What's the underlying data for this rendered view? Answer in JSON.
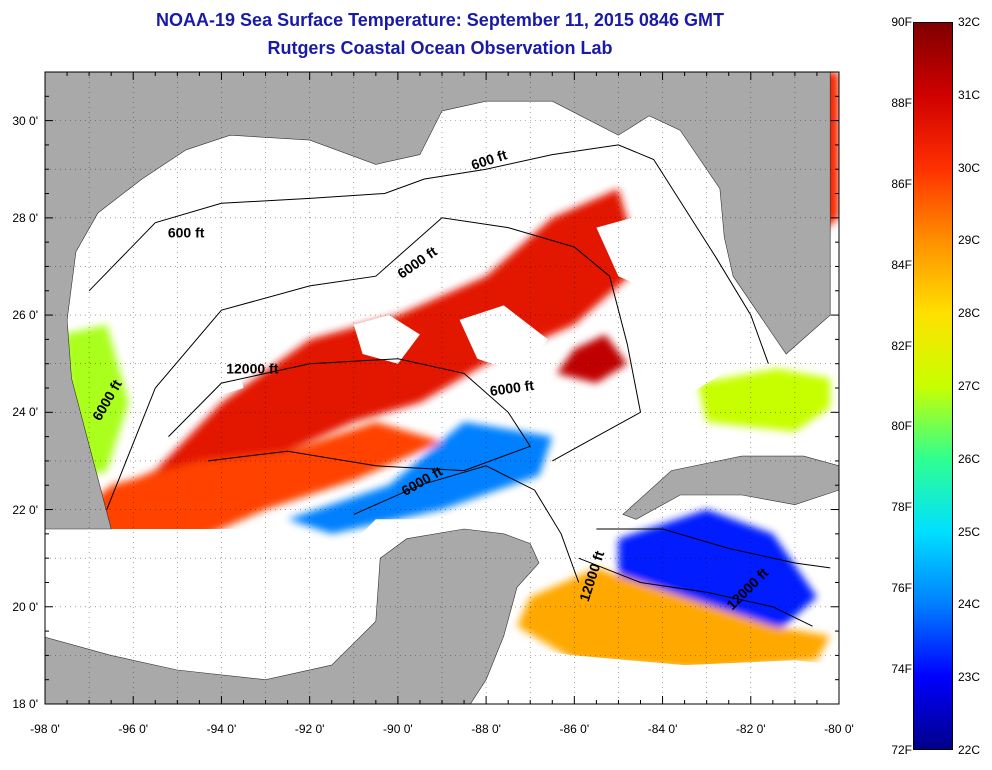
{
  "title_line1": "NOAA-19 Sea Surface Temperature:  September 11, 2015 0846 GMT",
  "title_line2": "Rutgers Coastal Ocean Observation Lab",
  "title_color": "#1a1aa8",
  "colors": {
    "land": "#a9a9a9",
    "cloud": "#ffffff",
    "contour": "#000000"
  },
  "x_axis": {
    "ticks": [
      "-98 0'",
      "-96 0'",
      "-94 0'",
      "-92 0'",
      "-90 0'",
      "-88 0'",
      "-86 0'",
      "-84 0'",
      "-82 0'",
      "-80 0'"
    ],
    "range": [
      -98,
      -80
    ]
  },
  "y_axis": {
    "ticks": [
      "18 0'",
      "20 0'",
      "22 0'",
      "24 0'",
      "26 0'",
      "28 0'",
      "30 0'"
    ],
    "range": [
      18,
      31
    ]
  },
  "colorbar": {
    "fahrenheit": [
      "90F",
      "88F",
      "86F",
      "84F",
      "82F",
      "80F",
      "78F",
      "76F",
      "74F",
      "72F"
    ],
    "celsius": [
      "32C",
      "31C",
      "30C",
      "29C",
      "28C",
      "27C",
      "26C",
      "25C",
      "24C",
      "23C",
      "22C"
    ],
    "gradient": [
      "#00008a",
      "#0000ff",
      "#0080ff",
      "#00e0ff",
      "#30ff90",
      "#c8ff00",
      "#ffe000",
      "#ff9000",
      "#ff3000",
      "#d00000",
      "#800000"
    ]
  },
  "isobath_labels": [
    {
      "text": "600 ft",
      "lon": -94.8,
      "lat": 27.6,
      "rot": 0
    },
    {
      "text": "600 ft",
      "lon": -87.9,
      "lat": 29.1,
      "rot": -18
    },
    {
      "text": "6000 ft",
      "lon": -89.5,
      "lat": 27.0,
      "rot": -35
    },
    {
      "text": "12000 ft",
      "lon": -93.3,
      "lat": 24.8,
      "rot": 0
    },
    {
      "text": "6000 ft",
      "lon": -87.4,
      "lat": 24.4,
      "rot": -8
    },
    {
      "text": "6000 ft",
      "lon": -96.5,
      "lat": 24.2,
      "rot": -60
    },
    {
      "text": "6000 ft",
      "lon": -89.4,
      "lat": 22.5,
      "rot": -30
    },
    {
      "text": "12000 ft",
      "lon": -85.5,
      "lat": 20.6,
      "rot": -72
    },
    {
      "text": "12000 ft",
      "lon": -82.0,
      "lat": 20.3,
      "rot": -45
    }
  ],
  "sst_regions": [
    {
      "temp_c": 30.6,
      "lons": [
        -95.5,
        -94.0,
        -92.0,
        -90.0,
        -88.0,
        -86.5,
        -85.0,
        -84.5,
        -86.0,
        -88.0,
        -89.5,
        -91.0,
        -93.0,
        -95.0,
        -96.3
      ],
      "lats": [
        22.8,
        24.2,
        25.5,
        26.0,
        26.8,
        28.0,
        28.6,
        27.0,
        25.8,
        25.0,
        24.2,
        23.8,
        23.0,
        22.6,
        22.5
      ]
    },
    {
      "temp_c": 31.2,
      "lons": [
        -86.0,
        -85.3,
        -84.8,
        -85.5,
        -86.4
      ],
      "lats": [
        25.3,
        25.6,
        25.0,
        24.6,
        24.8
      ]
    },
    {
      "temp_c": 29.8,
      "lons": [
        -97.4,
        -96.5,
        -94.5,
        -92.5,
        -90.5,
        -89.0,
        -91.0,
        -93.0,
        -95.0,
        -96.8
      ],
      "lats": [
        21.8,
        22.5,
        23.0,
        23.2,
        23.8,
        23.4,
        22.6,
        22.0,
        21.2,
        20.9
      ]
    },
    {
      "temp_c": 24.0,
      "lons": [
        -90.2,
        -88.5,
        -86.5,
        -86.8,
        -89.0,
        -91.5,
        -92.5
      ],
      "lats": [
        22.5,
        23.8,
        23.5,
        22.7,
        22.0,
        21.5,
        21.8
      ]
    },
    {
      "temp_c": 23.2,
      "lons": [
        -85.0,
        -83.0,
        -81.5,
        -80.5,
        -81.5,
        -83.5,
        -85.0
      ],
      "lats": [
        21.4,
        22.0,
        21.5,
        20.2,
        19.4,
        19.6,
        20.3
      ]
    },
    {
      "temp_c": 28.7,
      "lons": [
        -87.0,
        -85.5,
        -83.5,
        -81.5,
        -80.2,
        -80.5,
        -83.0,
        -86.0,
        -87.3
      ],
      "lats": [
        20.2,
        20.8,
        20.2,
        19.6,
        19.4,
        18.9,
        18.7,
        18.9,
        19.6
      ]
    },
    {
      "temp_c": 26.8,
      "lons": [
        -97.6,
        -96.6,
        -96.1,
        -96.6,
        -97.3
      ],
      "lats": [
        25.6,
        25.8,
        24.2,
        22.8,
        22.6
      ]
    },
    {
      "temp_c": 30.2,
      "lons": [
        -81.2,
        -80.0,
        -80.0,
        -80.7,
        -81.5
      ],
      "lats": [
        31.0,
        31.0,
        28.0,
        27.5,
        29.5
      ]
    },
    {
      "temp_c": 27.0,
      "lons": [
        -83.2,
        -81.4,
        -80.2,
        -80.2,
        -81.0,
        -83.0
      ],
      "lats": [
        24.6,
        24.9,
        24.7,
        24.1,
        23.6,
        23.8
      ]
    }
  ],
  "land_regions": [
    {
      "name": "north-america",
      "lons": [
        -98.5,
        -80.2,
        -80.2,
        -81.2,
        -82.4,
        -82.6,
        -82.7,
        -83.6,
        -84.3,
        -85.0,
        -86.5,
        -88.0,
        -89.0,
        -89.5,
        -90.5,
        -92.0,
        -93.8,
        -94.8,
        -95.8,
        -96.8,
        -97.3,
        -97.5,
        -97.4,
        -96.5,
        -98.5
      ],
      "lats": [
        31.5,
        31.5,
        26.0,
        25.2,
        26.8,
        27.6,
        28.6,
        29.8,
        30.1,
        29.7,
        30.4,
        30.4,
        30.2,
        29.3,
        29.1,
        29.6,
        29.7,
        29.4,
        28.8,
        28.1,
        27.3,
        25.9,
        24.7,
        21.6,
        21.6
      ]
    },
    {
      "name": "yucatan",
      "lons": [
        -98.5,
        -96.5,
        -95.0,
        -93.0,
        -91.5,
        -90.5,
        -90.4,
        -89.8,
        -88.5,
        -87.6,
        -87.0,
        -86.8,
        -87.3,
        -87.6,
        -88.0,
        -88.5,
        -98.5
      ],
      "lats": [
        19.5,
        19.0,
        18.7,
        18.5,
        18.8,
        19.7,
        21.0,
        21.4,
        21.6,
        21.5,
        21.3,
        20.9,
        20.4,
        19.4,
        18.5,
        17.8,
        17.8
      ]
    },
    {
      "name": "cuba",
      "lons": [
        -84.9,
        -83.8,
        -82.2,
        -80.8,
        -80.0,
        -80.0,
        -81.0,
        -82.2,
        -83.6,
        -84.6
      ],
      "lats": [
        21.9,
        22.8,
        23.1,
        23.1,
        22.9,
        22.4,
        22.1,
        22.3,
        22.3,
        21.8
      ]
    }
  ],
  "cloud_regions": [
    {
      "lons": [
        -97.2,
        -88.0,
        -86.5,
        -88.0,
        -90.0,
        -92.0,
        -94.5,
        -96.5
      ],
      "lats": [
        29.5,
        29.3,
        28.6,
        28.0,
        27.4,
        26.8,
        26.6,
        26.2
      ]
    },
    {
      "lons": [
        -98.5,
        -92.5,
        -91.5,
        -93.0,
        -96.0,
        -98.5
      ],
      "lats": [
        21.6,
        21.6,
        20.9,
        20.2,
        19.9,
        20.5
      ]
    },
    {
      "lons": [
        -91.8,
        -90.5,
        -88.0,
        -87.0,
        -87.6,
        -89.0,
        -91.0
      ],
      "lats": [
        20.6,
        21.8,
        21.8,
        20.9,
        19.4,
        19.4,
        19.9
      ]
    },
    {
      "lons": [
        -87.8,
        -86.0,
        -83.5,
        -81.0,
        -80.0,
        -80.0,
        -84.0,
        -87.0
      ],
      "lats": [
        19.2,
        19.0,
        18.8,
        18.9,
        18.8,
        18.0,
        18.0,
        18.0
      ]
    },
    {
      "lons": [
        -88.6,
        -87.6,
        -86.6,
        -87.2,
        -88.2
      ],
      "lats": [
        25.9,
        26.2,
        25.5,
        24.8,
        25.1
      ]
    },
    {
      "lons": [
        -91.0,
        -90.2,
        -89.5,
        -90.0,
        -90.8
      ],
      "lats": [
        25.8,
        26.0,
        25.6,
        25.0,
        25.2
      ]
    },
    {
      "lons": [
        -85.5,
        -83.5,
        -82.5,
        -83.5,
        -85.0
      ],
      "lats": [
        27.8,
        28.3,
        27.0,
        26.2,
        26.8
      ]
    },
    {
      "lons": [
        -84.0,
        -83.0,
        -82.5,
        -83.5
      ],
      "lats": [
        24.8,
        25.3,
        24.9,
        24.3
      ]
    },
    {
      "lons": [
        -95.0,
        -93.8,
        -93.5,
        -94.6
      ],
      "lats": [
        25.3,
        25.5,
        24.5,
        24.2
      ]
    }
  ],
  "isobaths": [
    {
      "depth": "600 ft",
      "lons": [
        -97.0,
        -95.5,
        -94.0,
        -92.0,
        -90.3,
        -89.4,
        -88.0,
        -86.5,
        -85.0,
        -84.2,
        -83.5,
        -82.8,
        -82.0,
        -81.6
      ],
      "lats": [
        26.5,
        27.9,
        28.3,
        28.4,
        28.5,
        28.8,
        29.0,
        29.3,
        29.5,
        29.2,
        28.2,
        27.2,
        26.0,
        25.0
      ]
    },
    {
      "depth": "6000 ft",
      "lons": [
        -96.6,
        -95.5,
        -94.0,
        -92.0,
        -90.5,
        -89.0,
        -87.5,
        -86.0,
        -85.2,
        -84.8,
        -84.5,
        -85.5,
        -86.5
      ],
      "lats": [
        22.0,
        24.5,
        26.1,
        26.6,
        26.8,
        28.0,
        27.8,
        27.4,
        26.8,
        25.4,
        24.0,
        23.5,
        23.0
      ]
    },
    {
      "depth": "12000 ft",
      "lons": [
        -95.2,
        -94.0,
        -92.0,
        -90.0,
        -88.5,
        -87.5,
        -87.0,
        -88.5,
        -90.5,
        -92.5,
        -94.3
      ],
      "lats": [
        23.5,
        24.6,
        25.0,
        25.1,
        24.8,
        24.0,
        23.3,
        22.8,
        22.9,
        23.2,
        23.0
      ]
    },
    {
      "depth": "6000 ft",
      "lons": [
        -91.0,
        -89.5,
        -88.0,
        -86.9,
        -86.3,
        -85.9
      ],
      "lats": [
        21.9,
        22.5,
        22.9,
        22.4,
        21.5,
        20.5
      ]
    },
    {
      "depth": "12000 ft",
      "lons": [
        -85.9,
        -84.5,
        -83.0,
        -81.5,
        -80.6
      ],
      "lats": [
        21.0,
        20.5,
        20.3,
        20.0,
        19.6
      ]
    },
    {
      "depth": "6000 ft",
      "lons": [
        -85.5,
        -84.0,
        -82.5,
        -81.0,
        -80.2
      ],
      "lats": [
        21.6,
        21.6,
        21.2,
        20.9,
        20.8
      ]
    }
  ]
}
